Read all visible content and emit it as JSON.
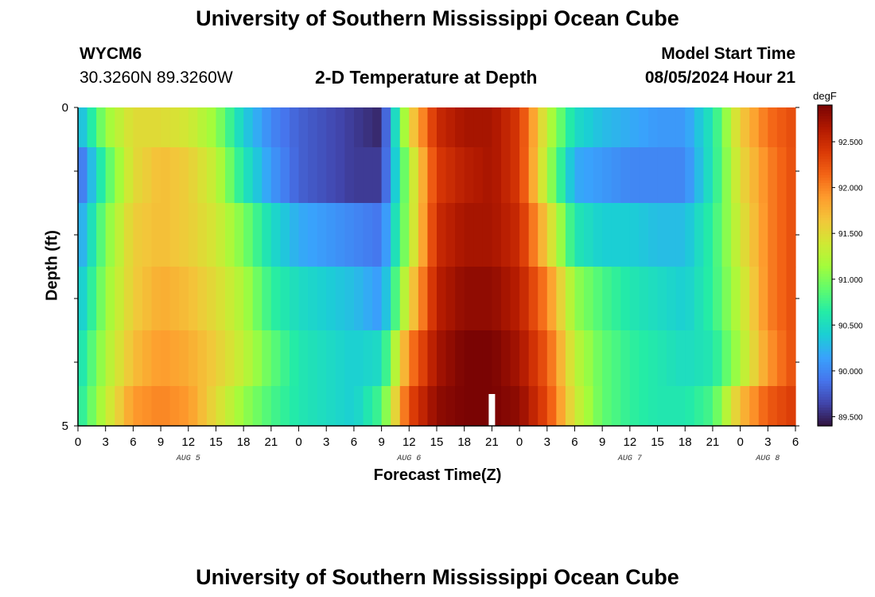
{
  "header": {
    "title": "University of Southern Mississippi Ocean Cube",
    "station_id": "WYCM6",
    "coordinates": "30.3260N  89.3260W",
    "subtitle": "2-D Temperature at Depth",
    "model_start_label": "Model Start Time",
    "model_start_value": "08/05/2024 Hour 21"
  },
  "footer": {
    "title": "University of Southern Mississippi Ocean Cube"
  },
  "colorbar": {
    "unit": "degF",
    "ticks": [
      "89.500",
      "90.000",
      "90.500",
      "91.000",
      "91.500",
      "92.000",
      "92.500"
    ],
    "tick_values": [
      89.5,
      90.0,
      90.5,
      91.0,
      91.5,
      92.0,
      92.5
    ],
    "range": [
      89.4,
      92.9
    ],
    "colors": [
      "#30123b",
      "#4145ab",
      "#4675ed",
      "#39a2fc",
      "#1bcfd4",
      "#24eca6",
      "#61fc6c",
      "#a4fc3b",
      "#d1e834",
      "#f3c63a",
      "#fe9b2d",
      "#f36315",
      "#d93806",
      "#b11901",
      "#7a0403"
    ]
  },
  "chart_data": {
    "type": "heatmap",
    "title": "2-D Temperature at Depth",
    "xlabel": "Forecast Time(Z)",
    "ylabel": "Depth (ft)",
    "x_tick_labels": [
      "0",
      "3",
      "6",
      "9",
      "12",
      "15",
      "18",
      "21",
      "0",
      "3",
      "6",
      "9",
      "12",
      "15",
      "18",
      "21",
      "0",
      "3",
      "6",
      "9",
      "12",
      "15",
      "18",
      "21",
      "0",
      "3",
      "6"
    ],
    "x_range_hours": [
      0,
      78
    ],
    "date_labels": [
      {
        "label": "AUG 5",
        "hour": 12
      },
      {
        "label": "AUG 6",
        "hour": 36
      },
      {
        "label": "AUG 7",
        "hour": 60
      },
      {
        "label": "AUG 8",
        "hour": 75
      }
    ],
    "y_tick_labels": [
      "0",
      "5"
    ],
    "ylim": [
      0,
      5
    ],
    "depth_bands_ft": [
      0.25,
      1.0,
      2.0,
      3.0,
      4.0,
      4.75
    ],
    "model_start_marker_hour": 45,
    "anchor_hours": [
      0,
      3,
      6,
      9,
      12,
      15,
      18,
      21,
      24,
      27,
      30,
      33,
      36,
      39,
      42,
      45,
      48,
      51,
      54,
      57,
      60,
      63,
      66,
      69,
      72,
      75,
      78
    ],
    "anchor_temps_degF": [
      [
        90.2,
        91.1,
        91.5,
        91.5,
        91.4,
        91.1,
        90.4,
        90.0,
        89.8,
        89.7,
        89.6,
        89.5,
        91.5,
        92.5,
        92.7,
        92.7,
        92.4,
        91.3,
        90.5,
        90.3,
        90.2,
        90.1,
        90.1,
        90.6,
        91.6,
        92.1,
        92.3
      ],
      [
        89.8,
        90.8,
        91.5,
        91.7,
        91.6,
        91.3,
        90.6,
        90.1,
        89.8,
        89.7,
        89.6,
        89.6,
        91.2,
        92.4,
        92.6,
        92.7,
        92.4,
        91.2,
        90.2,
        90.1,
        90.0,
        90.0,
        90.0,
        90.6,
        91.5,
        92.0,
        92.3
      ],
      [
        90.1,
        91.0,
        91.6,
        91.7,
        91.6,
        91.4,
        91.0,
        90.5,
        90.2,
        90.1,
        90.0,
        89.9,
        91.2,
        92.5,
        92.7,
        92.7,
        92.5,
        91.6,
        90.6,
        90.4,
        90.4,
        90.3,
        90.3,
        90.7,
        91.4,
        92.0,
        92.3
      ],
      [
        90.3,
        91.1,
        91.6,
        91.8,
        91.7,
        91.5,
        91.2,
        90.7,
        90.5,
        90.4,
        90.3,
        90.1,
        91.5,
        92.6,
        92.8,
        92.8,
        92.6,
        92.0,
        91.1,
        90.8,
        90.6,
        90.5,
        90.4,
        90.7,
        91.3,
        92.0,
        92.3
      ],
      [
        90.5,
        91.2,
        91.7,
        91.9,
        91.8,
        91.6,
        91.3,
        90.9,
        90.6,
        90.5,
        90.4,
        90.5,
        92.0,
        92.7,
        92.9,
        92.9,
        92.7,
        92.2,
        91.3,
        90.9,
        90.7,
        90.6,
        90.5,
        90.6,
        91.2,
        91.9,
        92.3
      ],
      [
        90.6,
        91.3,
        91.9,
        92.0,
        91.9,
        91.5,
        91.1,
        90.8,
        90.6,
        90.5,
        90.4,
        90.8,
        92.3,
        92.8,
        92.9,
        92.9,
        92.8,
        92.3,
        91.4,
        90.9,
        90.7,
        90.6,
        90.6,
        90.8,
        91.7,
        92.2,
        92.4
      ]
    ]
  }
}
